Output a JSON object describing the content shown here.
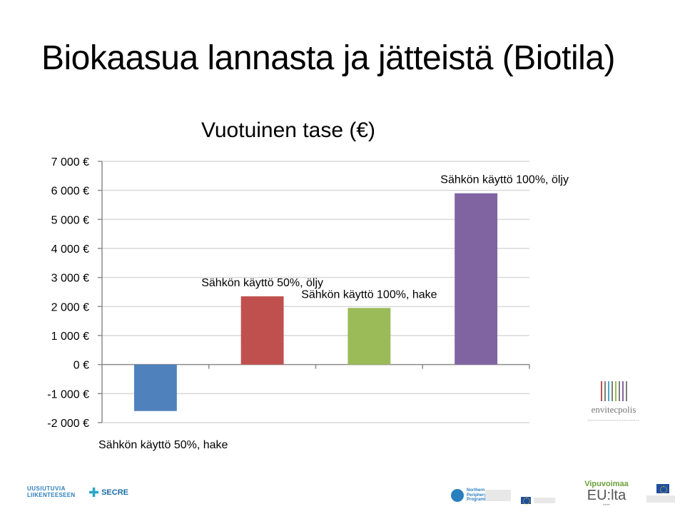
{
  "slide": {
    "title": "Biokaasua lannasta ja jätteistä (Biotila)"
  },
  "chart_data": {
    "type": "bar",
    "title": "Vuotuinen tase (€)",
    "xlabel": "",
    "ylabel": "",
    "ylim": [
      -2000,
      7000
    ],
    "yticks": [
      7000,
      6000,
      5000,
      4000,
      3000,
      2000,
      1000,
      0,
      -1000,
      -2000
    ],
    "ytick_labels": [
      "7 000 €",
      "6 000 €",
      "5 000 €",
      "4 000 €",
      "3 000 €",
      "2 000 €",
      "1 000 €",
      "0 €",
      "-1 000 €",
      "-2 000 €"
    ],
    "grid": true,
    "legend": "none",
    "categories": [
      "Sähkön käyttö 50%, hake",
      "Sähkön käyttö 50%, öljy",
      "Sähkön käyttö 100%, hake",
      "Sähkön käyttö 100%, öljy"
    ],
    "values": [
      -1600,
      2350,
      1950,
      5900
    ],
    "colors": [
      "#4f81bd",
      "#c0504d",
      "#9bbb59",
      "#8064a2"
    ]
  },
  "logos": {
    "envitecpolis": {
      "name": "envitecpolis",
      "bar_colors": [
        "#c0504d",
        "#7f7f7f",
        "#4bacc6",
        "#7f7f7f",
        "#9bbb59",
        "#7f7f7f",
        "#8064a2",
        "#7f7f7f"
      ]
    },
    "uusiutuvia": {
      "line1": "UUSIUTUVIA",
      "line2": "LIIKENTEESEEN"
    },
    "secre": {
      "name": "SECRE"
    },
    "npp": {
      "line1": "Northern",
      "line2": "Periphery",
      "line3": "Programme"
    },
    "vipuvoimaa": {
      "line1": "Vipuvoimaa",
      "line2": "EU:lta"
    }
  }
}
